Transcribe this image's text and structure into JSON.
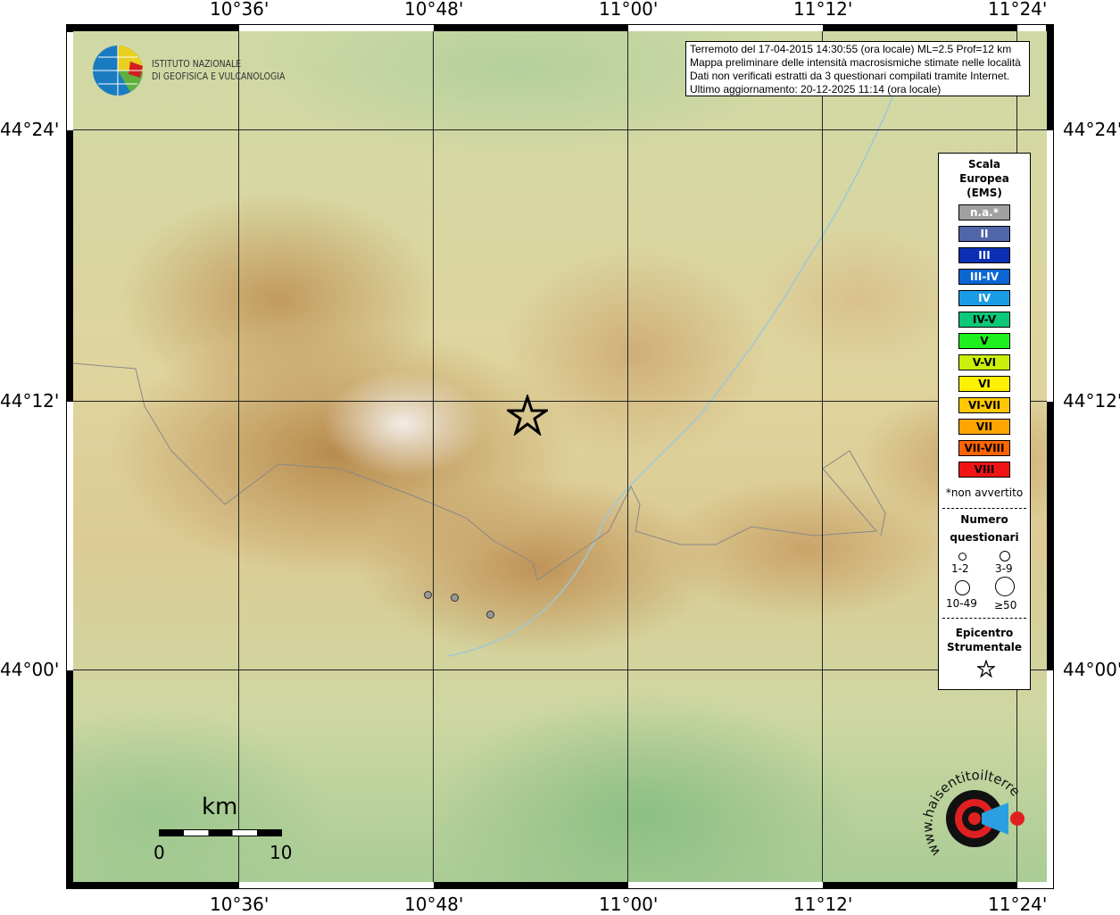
{
  "axes": {
    "longitude_ticks": [
      "10°36'",
      "10°48'",
      "11°00'",
      "11°12'",
      "11°24'"
    ],
    "latitude_ticks": [
      "44°24'",
      "44°12'",
      "44°00'"
    ]
  },
  "logo_ingv": {
    "line1": "ISTITUTO NAZIONALE",
    "line2": "DI GEOFISICA E VULCANOLOGIA"
  },
  "info": {
    "lines": [
      "Terremoto del 17-04-2015 14:30:55 (ora locale) ML=2.5 Prof=12 km",
      "Mappa preliminare delle intensità macrosismiche stimate nelle località",
      "Dati non verificati estratti da 3 questionari compilati tramite Internet.",
      "Ultimo aggiornamento: 20-12-2025 11:14 (ora locale)"
    ]
  },
  "legend": {
    "title": [
      "Scala",
      "Europea",
      "(EMS)"
    ],
    "scale": [
      {
        "label": "n.a.*",
        "color": "#a0a0a0",
        "text": "#fff"
      },
      {
        "label": "II",
        "color": "#5066a8",
        "text": "#fff"
      },
      {
        "label": "III",
        "color": "#0a2fb4",
        "text": "#fff"
      },
      {
        "label": "III-IV",
        "color": "#0a66d2",
        "text": "#fff"
      },
      {
        "label": "IV",
        "color": "#1a9be6",
        "text": "#fff"
      },
      {
        "label": "IV-V",
        "color": "#0cc878",
        "text": "#000"
      },
      {
        "label": "V",
        "color": "#1ef01e",
        "text": "#000"
      },
      {
        "label": "V-VI",
        "color": "#c8f00a",
        "text": "#000"
      },
      {
        "label": "VI",
        "color": "#fff000",
        "text": "#000"
      },
      {
        "label": "VI-VII",
        "color": "#ffc800",
        "text": "#000"
      },
      {
        "label": "VII",
        "color": "#ffa500",
        "text": "#000"
      },
      {
        "label": "VII-VIII",
        "color": "#ff6400",
        "text": "#000"
      },
      {
        "label": "VIII",
        "color": "#f01414",
        "text": "#000"
      }
    ],
    "note": "*non avvertito",
    "count_title": [
      "Numero",
      "questionari"
    ],
    "count_classes": [
      "1-2",
      "3-9",
      "10-49",
      "≥50"
    ],
    "epicenter_title": [
      "Epicentro",
      "Strumentale"
    ],
    "epicenter_icon": "star-icon"
  },
  "scalebar": {
    "unit": "km",
    "labels": [
      "0",
      "10"
    ]
  },
  "epicenter": {
    "lon": 10.897,
    "lat": 44.189
  },
  "questionnaire_points": [
    {
      "lon": 10.794,
      "lat": 44.056,
      "intensity": "n.a.*"
    },
    {
      "lon": 10.822,
      "lat": 44.054,
      "intensity": "n.a.*"
    },
    {
      "lon": 10.859,
      "lat": 44.041,
      "intensity": "n.a.*"
    }
  ],
  "logo_hsit": {
    "text": "www.haisentitoilterremoto.it"
  }
}
